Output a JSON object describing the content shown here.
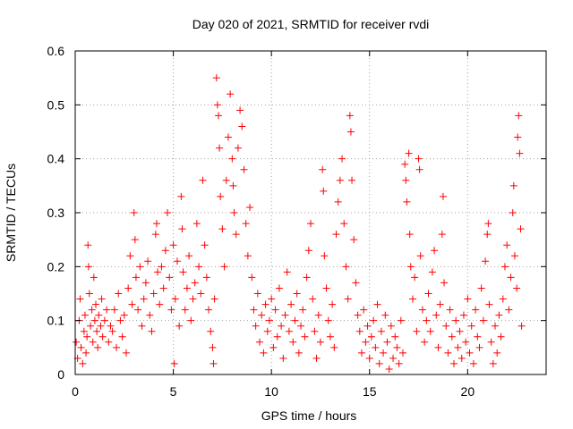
{
  "chart_data": {
    "type": "scatter",
    "title": "Day 020 of 2021, SRMTID for receiver rvdi",
    "xlabel": "GPS time / hours",
    "ylabel": "SRMTID / TECUs",
    "xlim": [
      0,
      24
    ],
    "ylim": [
      0,
      0.6
    ],
    "xticks": [
      0,
      5,
      10,
      15,
      20
    ],
    "xtick_labels": [
      "0",
      "5",
      "10",
      "15",
      "20"
    ],
    "yticks": [
      0,
      0.1,
      0.2,
      0.3,
      0.4,
      0.5,
      0.6
    ],
    "ytick_labels": [
      "0",
      "0.1",
      "0.2",
      "0.3",
      "0.4",
      "0.5",
      "0.6"
    ],
    "grid": true,
    "marker": "+",
    "color": "#ff0000",
    "series": [
      {
        "name": "rvdi",
        "points": [
          [
            0.05,
            0.06
          ],
          [
            0.12,
            0.03
          ],
          [
            0.2,
            0.1
          ],
          [
            0.25,
            0.14
          ],
          [
            0.3,
            0.05
          ],
          [
            0.38,
            0.02
          ],
          [
            0.45,
            0.08
          ],
          [
            0.5,
            0.11
          ],
          [
            0.55,
            0.04
          ],
          [
            0.6,
            0.07
          ],
          [
            0.65,
            0.24
          ],
          [
            0.68,
            0.2
          ],
          [
            0.72,
            0.15
          ],
          [
            0.78,
            0.09
          ],
          [
            0.85,
            0.12
          ],
          [
            0.9,
            0.06
          ],
          [
            0.95,
            0.18
          ],
          [
            1.0,
            0.1
          ],
          [
            1.05,
            0.13
          ],
          [
            1.1,
            0.08
          ],
          [
            1.15,
            0.05
          ],
          [
            1.2,
            0.11
          ],
          [
            1.3,
            0.09
          ],
          [
            1.35,
            0.14
          ],
          [
            1.4,
            0.07
          ],
          [
            1.5,
            0.1
          ],
          [
            1.6,
            0.12
          ],
          [
            1.7,
            0.06
          ],
          [
            1.8,
            0.09
          ],
          [
            1.9,
            0.08
          ],
          [
            2.0,
            0.12
          ],
          [
            2.1,
            0.05
          ],
          [
            2.2,
            0.15
          ],
          [
            2.3,
            0.1
          ],
          [
            2.4,
            0.07
          ],
          [
            2.5,
            0.11
          ],
          [
            2.6,
            0.04
          ],
          [
            2.7,
            0.16
          ],
          [
            2.8,
            0.22
          ],
          [
            2.9,
            0.13
          ],
          [
            3.0,
            0.3
          ],
          [
            3.05,
            0.25
          ],
          [
            3.1,
            0.18
          ],
          [
            3.2,
            0.12
          ],
          [
            3.3,
            0.2
          ],
          [
            3.4,
            0.09
          ],
          [
            3.5,
            0.14
          ],
          [
            3.6,
            0.17
          ],
          [
            3.7,
            0.21
          ],
          [
            3.8,
            0.11
          ],
          [
            3.9,
            0.08
          ],
          [
            4.0,
            0.15
          ],
          [
            4.1,
            0.26
          ],
          [
            4.15,
            0.28
          ],
          [
            4.2,
            0.19
          ],
          [
            4.3,
            0.13
          ],
          [
            4.4,
            0.2
          ],
          [
            4.5,
            0.16
          ],
          [
            4.6,
            0.23
          ],
          [
            4.7,
            0.3
          ],
          [
            4.8,
            0.18
          ],
          [
            4.9,
            0.12
          ],
          [
            5.0,
            0.24
          ],
          [
            5.05,
            0.02
          ],
          [
            5.1,
            0.14
          ],
          [
            5.2,
            0.21
          ],
          [
            5.3,
            0.09
          ],
          [
            5.4,
            0.33
          ],
          [
            5.45,
            0.27
          ],
          [
            5.5,
            0.19
          ],
          [
            5.6,
            0.12
          ],
          [
            5.7,
            0.16
          ],
          [
            5.8,
            0.22
          ],
          [
            5.9,
            0.1
          ],
          [
            6.0,
            0.14
          ],
          [
            6.1,
            0.17
          ],
          [
            6.2,
            0.28
          ],
          [
            6.3,
            0.2
          ],
          [
            6.4,
            0.15
          ],
          [
            6.5,
            0.36
          ],
          [
            6.6,
            0.24
          ],
          [
            6.7,
            0.18
          ],
          [
            6.8,
            0.12
          ],
          [
            6.9,
            0.08
          ],
          [
            7.0,
            0.05
          ],
          [
            7.05,
            0.02
          ],
          [
            7.1,
            0.14
          ],
          [
            7.2,
            0.55
          ],
          [
            7.25,
            0.5
          ],
          [
            7.3,
            0.48
          ],
          [
            7.35,
            0.42
          ],
          [
            7.4,
            0.33
          ],
          [
            7.5,
            0.27
          ],
          [
            7.6,
            0.2
          ],
          [
            7.7,
            0.36
          ],
          [
            7.8,
            0.44
          ],
          [
            7.9,
            0.52
          ],
          [
            8.0,
            0.4
          ],
          [
            8.05,
            0.35
          ],
          [
            8.1,
            0.3
          ],
          [
            8.2,
            0.26
          ],
          [
            8.3,
            0.42
          ],
          [
            8.4,
            0.49
          ],
          [
            8.5,
            0.46
          ],
          [
            8.6,
            0.38
          ],
          [
            8.7,
            0.28
          ],
          [
            8.8,
            0.22
          ],
          [
            8.9,
            0.31
          ],
          [
            9.0,
            0.18
          ],
          [
            9.1,
            0.12
          ],
          [
            9.2,
            0.09
          ],
          [
            9.3,
            0.15
          ],
          [
            9.4,
            0.06
          ],
          [
            9.5,
            0.11
          ],
          [
            9.6,
            0.04
          ],
          [
            9.7,
            0.13
          ],
          [
            9.8,
            0.08
          ],
          [
            9.9,
            0.1
          ],
          [
            10.0,
            0.14
          ],
          [
            10.1,
            0.05
          ],
          [
            10.2,
            0.12
          ],
          [
            10.3,
            0.07
          ],
          [
            10.4,
            0.16
          ],
          [
            10.5,
            0.09
          ],
          [
            10.6,
            0.03
          ],
          [
            10.7,
            0.11
          ],
          [
            10.8,
            0.19
          ],
          [
            10.9,
            0.08
          ],
          [
            11.0,
            0.13
          ],
          [
            11.1,
            0.06
          ],
          [
            11.2,
            0.1
          ],
          [
            11.3,
            0.15
          ],
          [
            11.4,
            0.04
          ],
          [
            11.5,
            0.09
          ],
          [
            11.6,
            0.12
          ],
          [
            11.7,
            0.07
          ],
          [
            11.8,
            0.18
          ],
          [
            11.9,
            0.23
          ],
          [
            12.0,
            0.28
          ],
          [
            12.1,
            0.14
          ],
          [
            12.2,
            0.08
          ],
          [
            12.3,
            0.03
          ],
          [
            12.4,
            0.11
          ],
          [
            12.5,
            0.06
          ],
          [
            12.6,
            0.38
          ],
          [
            12.65,
            0.34
          ],
          [
            12.7,
            0.22
          ],
          [
            12.8,
            0.16
          ],
          [
            12.9,
            0.1
          ],
          [
            13.0,
            0.07
          ],
          [
            13.1,
            0.13
          ],
          [
            13.2,
            0.05
          ],
          [
            13.3,
            0.26
          ],
          [
            13.4,
            0.32
          ],
          [
            13.5,
            0.36
          ],
          [
            13.6,
            0.4
          ],
          [
            13.7,
            0.28
          ],
          [
            13.8,
            0.2
          ],
          [
            13.9,
            0.14
          ],
          [
            14.0,
            0.48
          ],
          [
            14.05,
            0.45
          ],
          [
            14.1,
            0.36
          ],
          [
            14.2,
            0.25
          ],
          [
            14.3,
            0.17
          ],
          [
            14.4,
            0.11
          ],
          [
            14.5,
            0.08
          ],
          [
            14.6,
            0.04
          ],
          [
            14.7,
            0.12
          ],
          [
            14.8,
            0.06
          ],
          [
            14.9,
            0.09
          ],
          [
            15.0,
            0.03
          ],
          [
            15.1,
            0.07
          ],
          [
            15.2,
            0.1
          ],
          [
            15.3,
            0.05
          ],
          [
            15.4,
            0.13
          ],
          [
            15.5,
            0.02
          ],
          [
            15.6,
            0.08
          ],
          [
            15.7,
            0.04
          ],
          [
            15.8,
            0.11
          ],
          [
            15.9,
            0.06
          ],
          [
            16.0,
            0.01
          ],
          [
            16.1,
            0.09
          ],
          [
            16.2,
            0.03
          ],
          [
            16.3,
            0.07
          ],
          [
            16.4,
            0.05
          ],
          [
            16.5,
            0.02
          ],
          [
            16.6,
            0.1
          ],
          [
            16.7,
            0.04
          ],
          [
            16.8,
            0.39
          ],
          [
            16.85,
            0.36
          ],
          [
            16.9,
            0.32
          ],
          [
            17.0,
            0.41
          ],
          [
            17.05,
            0.26
          ],
          [
            17.1,
            0.2
          ],
          [
            17.2,
            0.14
          ],
          [
            17.3,
            0.18
          ],
          [
            17.4,
            0.08
          ],
          [
            17.5,
            0.4
          ],
          [
            17.55,
            0.38
          ],
          [
            17.6,
            0.22
          ],
          [
            17.7,
            0.12
          ],
          [
            17.8,
            0.06
          ],
          [
            17.9,
            0.1
          ],
          [
            18.0,
            0.15
          ],
          [
            18.1,
            0.08
          ],
          [
            18.2,
            0.19
          ],
          [
            18.3,
            0.23
          ],
          [
            18.4,
            0.11
          ],
          [
            18.5,
            0.05
          ],
          [
            18.6,
            0.13
          ],
          [
            18.7,
            0.26
          ],
          [
            18.75,
            0.33
          ],
          [
            18.8,
            0.17
          ],
          [
            18.9,
            0.09
          ],
          [
            19.0,
            0.04
          ],
          [
            19.1,
            0.12
          ],
          [
            19.2,
            0.07
          ],
          [
            19.3,
            0.02
          ],
          [
            19.4,
            0.1
          ],
          [
            19.5,
            0.05
          ],
          [
            19.6,
            0.08
          ],
          [
            19.7,
            0.03
          ],
          [
            19.8,
            0.11
          ],
          [
            19.9,
            0.06
          ],
          [
            20.0,
            0.14
          ],
          [
            20.1,
            0.04
          ],
          [
            20.2,
            0.09
          ],
          [
            20.3,
            0.02
          ],
          [
            20.4,
            0.12
          ],
          [
            20.5,
            0.07
          ],
          [
            20.6,
            0.05
          ],
          [
            20.7,
            0.16
          ],
          [
            20.8,
            0.1
          ],
          [
            20.9,
            0.21
          ],
          [
            21.0,
            0.26
          ],
          [
            21.05,
            0.28
          ],
          [
            21.1,
            0.13
          ],
          [
            21.2,
            0.06
          ],
          [
            21.3,
            0.02
          ],
          [
            21.4,
            0.09
          ],
          [
            21.5,
            0.04
          ],
          [
            21.6,
            0.11
          ],
          [
            21.7,
            0.07
          ],
          [
            21.8,
            0.14
          ],
          [
            21.9,
            0.2
          ],
          [
            22.0,
            0.24
          ],
          [
            22.1,
            0.12
          ],
          [
            22.2,
            0.18
          ],
          [
            22.3,
            0.3
          ],
          [
            22.35,
            0.35
          ],
          [
            22.4,
            0.22
          ],
          [
            22.5,
            0.16
          ],
          [
            22.55,
            0.44
          ],
          [
            22.6,
            0.48
          ],
          [
            22.65,
            0.41
          ],
          [
            22.7,
            0.27
          ],
          [
            22.75,
            0.09
          ]
        ]
      }
    ]
  }
}
